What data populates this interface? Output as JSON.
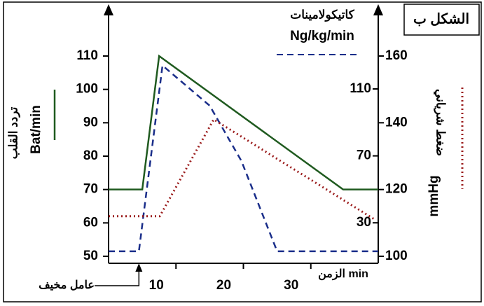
{
  "chart_data": {
    "type": "line",
    "figure_label": "الشكل ب",
    "x_label": "الزمن min",
    "annotation": "عامل مخيف",
    "annotation_x": 4.5,
    "y_label": "تردد القلب",
    "y_unit": "Bat/min",
    "y2_label": "كاتيكولامينات",
    "y2_unit": "Ng/kg/min",
    "y3_label": "ضغط شرياني",
    "y3_unit": "mmHg",
    "xlim": [
      0,
      40
    ],
    "xticks": [
      10,
      20,
      30
    ],
    "ylim": [
      50,
      110
    ],
    "yticks": [
      50,
      60,
      70,
      80,
      90,
      100,
      110
    ],
    "y2lim": [
      10,
      110
    ],
    "y2ticks": [
      30,
      70,
      110
    ],
    "y3lim": [
      100,
      160
    ],
    "y3ticks": [
      100,
      120,
      140,
      160
    ],
    "series": [
      {
        "name": "تردد القلب",
        "color": "#1f5a1f",
        "dash": "solid",
        "axis": "y",
        "x": [
          0,
          5,
          7.5,
          34.8,
          40
        ],
        "values": [
          70,
          70,
          110,
          70,
          70
        ]
      },
      {
        "name": "كاتيكولامينات",
        "color": "#1a2e8a",
        "dash": "dashed",
        "axis": "y2",
        "x": [
          0,
          4.5,
          8,
          15,
          19.7,
          25,
          40
        ],
        "values": [
          13,
          13,
          124,
          100,
          67,
          13,
          13
        ]
      },
      {
        "name": "ضغط شرياني",
        "color": "#9b1c1c",
        "dash": "dotted",
        "axis": "y3",
        "x": [
          0,
          7.6,
          15.6,
          39.5
        ],
        "values": [
          112,
          112,
          141,
          111
        ]
      }
    ]
  }
}
